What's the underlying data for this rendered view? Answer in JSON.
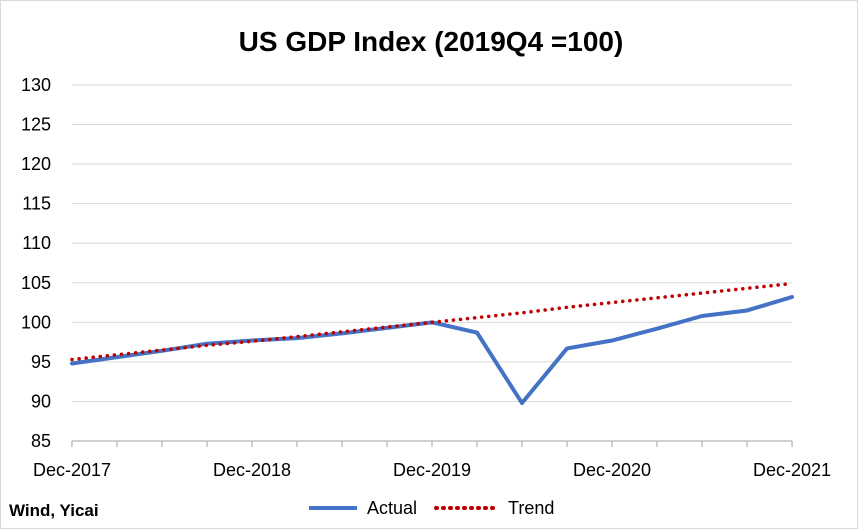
{
  "chart_data": {
    "type": "line",
    "title": "US GDP Index (2019Q4 =100)",
    "xlabel": "",
    "ylabel": "",
    "x": [
      "2017-12",
      "2018-03",
      "2018-06",
      "2018-09",
      "2018-12",
      "2019-03",
      "2019-06",
      "2019-09",
      "2019-12",
      "2020-03",
      "2020-06",
      "2020-09",
      "2020-12",
      "2021-03",
      "2021-06",
      "2021-09",
      "2021-12"
    ],
    "x_tick_labels": [
      "Dec-2017",
      "Dec-2018",
      "Dec-2019",
      "Dec-2020",
      "Dec-2021"
    ],
    "ylim": [
      85,
      130
    ],
    "y_ticks": [
      85,
      90,
      95,
      100,
      105,
      110,
      115,
      120,
      125,
      130
    ],
    "series": [
      {
        "name": "Actual",
        "color": "#4472C4",
        "style": "solid",
        "values": [
          94.8,
          95.6,
          96.4,
          97.3,
          97.7,
          98.0,
          98.6,
          99.3,
          100.0,
          98.7,
          89.8,
          96.7,
          97.7,
          99.2,
          100.8,
          101.5,
          103.2
        ]
      },
      {
        "name": "Trend",
        "color": "#C00000",
        "style": "dotted",
        "values": [
          95.3,
          95.9,
          96.5,
          97.1,
          97.6,
          98.2,
          98.8,
          99.4,
          100.0,
          100.6,
          101.2,
          101.9,
          102.5,
          103.1,
          103.7,
          104.3,
          104.9
        ]
      }
    ],
    "grid": "horizontal",
    "legend": "bottom-center",
    "source": "Wind, Yicai"
  }
}
